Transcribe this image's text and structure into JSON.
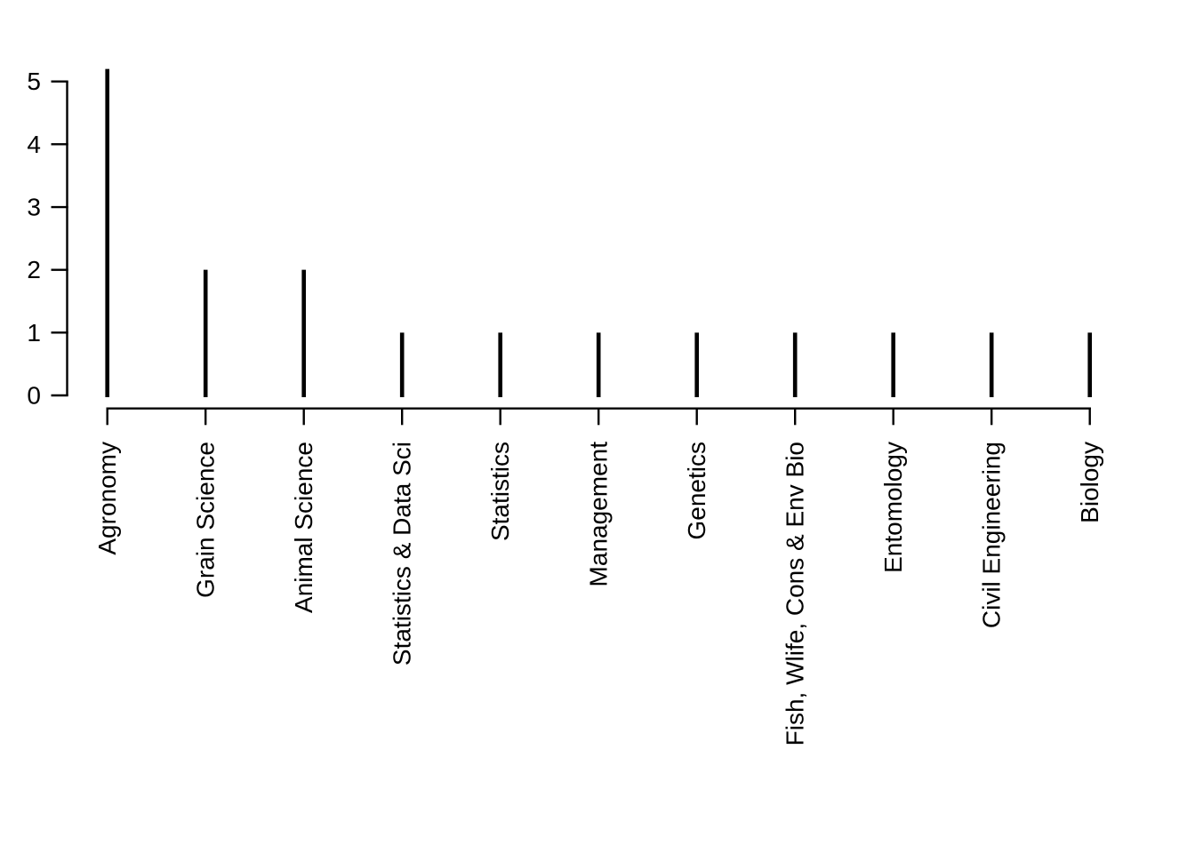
{
  "chart_data": {
    "type": "bar",
    "variant": "vertical-spike (R base plot type='h')",
    "title": "",
    "xlabel": "",
    "ylabel": "",
    "categories": [
      "Agronomy",
      "Grain Science",
      "Animal Science",
      "Statistics & Data Sci",
      "Statistics",
      "Management",
      "Genetics",
      "Fish, Wlife, Cons & Env Bio",
      "Entomology",
      "Civil Engineering",
      "Biology"
    ],
    "values": [
      5.2,
      2,
      2,
      1,
      1,
      1,
      1,
      1,
      1,
      1,
      1
    ],
    "ylim": [
      0,
      5.2
    ],
    "yticks": [
      0,
      1,
      2,
      3,
      4,
      5
    ],
    "ytick_labels": [
      "0",
      "1",
      "2",
      "3",
      "4",
      "5"
    ],
    "xtick_label_rotation_deg": 90,
    "grid": false,
    "legend_position": "none",
    "colors": {
      "spike": "#000000",
      "axis": "#000000",
      "text": "#000000",
      "background": "#ffffff"
    },
    "note": "All spikes rise from 0; the Agronomy spike is drawn slightly above the top 5 tick (reaches ~5.2 at the clipped plot-region edge)."
  }
}
